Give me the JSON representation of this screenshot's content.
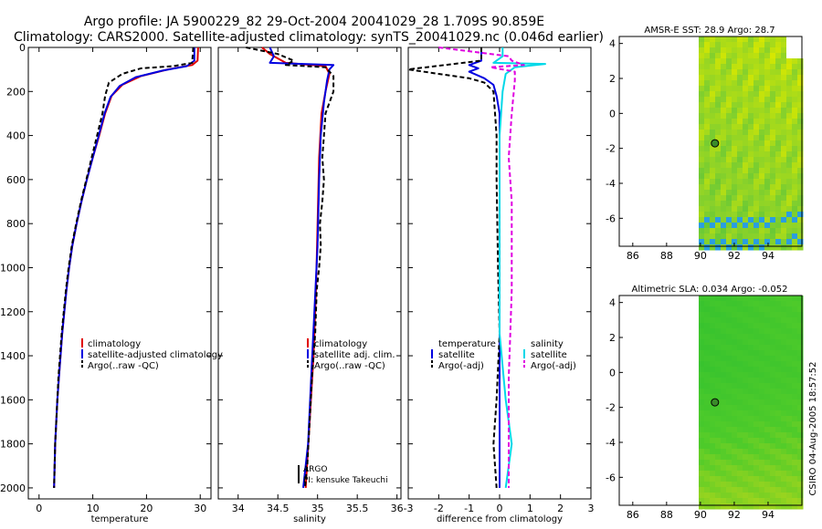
{
  "title_line1": "Argo profile: JA 5900229_82 29-Oct-2004 20041029_28 1.709S 90.859E",
  "title_line2": "Climatology: CARS2000. Satellite-adjusted climatology: synTS_20041029.nc (0.046d earlier)",
  "side_label": "CSIRO 04-Aug-2005 18:57:52",
  "colors": {
    "clim": "#e00000",
    "sat": "#0000e0",
    "argo": "#000000",
    "cyan": "#00d8e8",
    "magenta": "#e000e0"
  },
  "chart_data": [
    {
      "type": "line",
      "id": "temp",
      "xlabel": "temperature",
      "xlim": [
        -2,
        32
      ],
      "ylim": [
        0,
        2050
      ],
      "xticks": [
        0,
        10,
        20,
        30
      ],
      "yticks": [
        0,
        200,
        400,
        600,
        800,
        1000,
        1200,
        1400,
        1600,
        1800,
        2000
      ],
      "legend": [
        "climatology",
        "satellite-adjusted climatology",
        "Argo(..raw -QC)"
      ],
      "series": [
        {
          "name": "climatology",
          "color": "clim",
          "dash": false,
          "points": [
            [
              29.6,
              0
            ],
            [
              29.5,
              60
            ],
            [
              28.5,
              80
            ],
            [
              24,
              100
            ],
            [
              19,
              130
            ],
            [
              15.5,
              170
            ],
            [
              13.5,
              220
            ],
            [
              12.3,
              300
            ],
            [
              11.2,
              400
            ],
            [
              10,
              500
            ],
            [
              8.9,
              600
            ],
            [
              7.9,
              700
            ],
            [
              7,
              800
            ],
            [
              6.2,
              900
            ],
            [
              5.6,
              1000
            ],
            [
              5.1,
              1100
            ],
            [
              4.7,
              1200
            ],
            [
              4.3,
              1300
            ],
            [
              4,
              1400
            ],
            [
              3.7,
              1500
            ],
            [
              3.4,
              1600
            ],
            [
              3.2,
              1700
            ],
            [
              3,
              1800
            ],
            [
              2.9,
              1900
            ],
            [
              2.8,
              2000
            ]
          ]
        },
        {
          "name": "satellite-adjusted climatology",
          "color": "sat",
          "dash": false,
          "points": [
            [
              28.9,
              0
            ],
            [
              28.9,
              60
            ],
            [
              27.5,
              85
            ],
            [
              23,
              105
            ],
            [
              18,
              135
            ],
            [
              15,
              175
            ],
            [
              13.3,
              225
            ],
            [
              12.2,
              300
            ],
            [
              11.1,
              400
            ],
            [
              10,
              500
            ],
            [
              8.9,
              600
            ],
            [
              7.9,
              700
            ],
            [
              7,
              800
            ],
            [
              6.2,
              900
            ],
            [
              5.6,
              1000
            ],
            [
              5.1,
              1100
            ],
            [
              4.7,
              1200
            ],
            [
              4.3,
              1300
            ],
            [
              4,
              1400
            ],
            [
              3.7,
              1500
            ],
            [
              3.4,
              1600
            ],
            [
              3.2,
              1700
            ],
            [
              3,
              1800
            ],
            [
              2.9,
              1900
            ],
            [
              2.8,
              2000
            ]
          ]
        },
        {
          "name": "Argo(..raw -QC)",
          "color": "argo",
          "dash": true,
          "points": [
            [
              28.7,
              0
            ],
            [
              28.5,
              70
            ],
            [
              25,
              85
            ],
            [
              19,
              95
            ],
            [
              15.5,
              120
            ],
            [
              13,
              160
            ],
            [
              12.3,
              220
            ],
            [
              11.8,
              300
            ],
            [
              10.8,
              400
            ],
            [
              9.8,
              500
            ],
            [
              8.8,
              600
            ],
            [
              7.8,
              700
            ],
            [
              6.9,
              800
            ],
            [
              6.1,
              900
            ],
            [
              5.5,
              1000
            ],
            [
              5,
              1100
            ],
            [
              4.6,
              1200
            ],
            [
              4.2,
              1300
            ],
            [
              3.9,
              1400
            ],
            [
              3.6,
              1500
            ],
            [
              3.4,
              1600
            ],
            [
              3.2,
              1700
            ],
            [
              3,
              1800
            ],
            [
              2.9,
              1900
            ],
            [
              2.8,
              2000
            ]
          ]
        }
      ]
    },
    {
      "type": "line",
      "id": "sal",
      "xlabel": "salinity",
      "xlim": [
        33.75,
        36.05
      ],
      "ylim": [
        0,
        2050
      ],
      "xticks": [
        34,
        34.5,
        35,
        35.5,
        36
      ],
      "legend": [
        "climatology",
        "satellite adj. clim.",
        "Argo(..raw -QC)"
      ],
      "note_lines": [
        "ARGO",
        "PI: kensuke Takeuchi"
      ],
      "series": [
        {
          "name": "climatology",
          "color": "clim",
          "dash": false,
          "points": [
            [
              34.3,
              0
            ],
            [
              34.4,
              30
            ],
            [
              34.6,
              70
            ],
            [
              35.1,
              85
            ],
            [
              35.15,
              120
            ],
            [
              35.1,
              200
            ],
            [
              35.05,
              300
            ],
            [
              35.02,
              500
            ],
            [
              35,
              800
            ],
            [
              34.98,
              1100
            ],
            [
              34.95,
              1400
            ],
            [
              34.9,
              1700
            ],
            [
              34.85,
              2000
            ]
          ]
        },
        {
          "name": "satellite adj. clim.",
          "color": "sat",
          "dash": false,
          "points": [
            [
              34.4,
              0
            ],
            [
              34.45,
              40
            ],
            [
              34.4,
              70
            ],
            [
              35.2,
              80
            ],
            [
              35.15,
              100
            ],
            [
              35.12,
              150
            ],
            [
              35.08,
              250
            ],
            [
              35.04,
              400
            ],
            [
              35.02,
              600
            ],
            [
              35,
              900
            ],
            [
              34.96,
              1200
            ],
            [
              34.92,
              1500
            ],
            [
              34.88,
              1800
            ],
            [
              34.82,
              2000
            ]
          ]
        },
        {
          "name": "Argo(..raw -QC)",
          "color": "argo",
          "dash": true,
          "points": [
            [
              34.1,
              0
            ],
            [
              34.5,
              30
            ],
            [
              34.7,
              60
            ],
            [
              34.6,
              80
            ],
            [
              35.1,
              90
            ],
            [
              35.2,
              130
            ],
            [
              35.2,
              200
            ],
            [
              35.1,
              300
            ],
            [
              35.08,
              400
            ],
            [
              35.06,
              500
            ],
            [
              35.08,
              600
            ],
            [
              35.06,
              700
            ],
            [
              35.03,
              800
            ],
            [
              35.04,
              900
            ],
            [
              35.02,
              1000
            ],
            [
              34.99,
              1100
            ],
            [
              34.97,
              1300
            ],
            [
              34.93,
              1500
            ],
            [
              34.9,
              1700
            ],
            [
              34.87,
              1900
            ],
            [
              34.84,
              2000
            ]
          ]
        }
      ]
    },
    {
      "type": "line",
      "id": "diff",
      "xlabel": "difference from climatology",
      "xlim": [
        -3,
        3
      ],
      "ylim": [
        0,
        2050
      ],
      "xticks": [
        -3,
        -2,
        -1,
        0,
        1,
        2,
        3
      ],
      "legend_left": [
        "temperature",
        "satellite",
        "Argo(-adj)"
      ],
      "legend_right": [
        "salinity",
        "satellite",
        "Argo(-adj)"
      ],
      "series": [
        {
          "name": "temperature satellite",
          "color": "sat",
          "dash": false,
          "points": [
            [
              -0.6,
              0
            ],
            [
              -0.6,
              60
            ],
            [
              -1,
              80
            ],
            [
              -0.7,
              95
            ],
            [
              -1,
              110
            ],
            [
              -0.5,
              140
            ],
            [
              -0.2,
              170
            ],
            [
              -0.1,
              220
            ],
            [
              0,
              300
            ],
            [
              0,
              600
            ],
            [
              0,
              1000
            ],
            [
              0,
              1400
            ],
            [
              0,
              2000
            ]
          ]
        },
        {
          "name": "temperature Argo(-adj)",
          "color": "argo",
          "dash": true,
          "points": [
            [
              -0.6,
              0
            ],
            [
              -0.6,
              60
            ],
            [
              -1.5,
              75
            ],
            [
              -3,
              100
            ],
            [
              -2,
              120
            ],
            [
              -1,
              140
            ],
            [
              -0.5,
              160
            ],
            [
              -0.2,
              200
            ],
            [
              -0.15,
              300
            ],
            [
              -0.1,
              400
            ],
            [
              -0.1,
              600
            ],
            [
              -0.05,
              1000
            ],
            [
              0,
              1300
            ],
            [
              -0.1,
              1600
            ],
            [
              -0.2,
              1800
            ],
            [
              -0.1,
              2000
            ]
          ]
        },
        {
          "name": "salinity satellite",
          "color": "cyan",
          "dash": false,
          "points": [
            [
              0.1,
              0
            ],
            [
              0.1,
              40
            ],
            [
              -0.2,
              70
            ],
            [
              1.5,
              75
            ],
            [
              0.5,
              90
            ],
            [
              0.2,
              120
            ],
            [
              0.1,
              200
            ],
            [
              0,
              400
            ],
            [
              0,
              700
            ],
            [
              0,
              1000
            ],
            [
              0,
              1300
            ],
            [
              0.2,
              1600
            ],
            [
              0.4,
              1800
            ],
            [
              0.2,
              2000
            ]
          ]
        },
        {
          "name": "salinity Argo(-adj)",
          "color": "magenta",
          "dash": true,
          "points": [
            [
              -2,
              0
            ],
            [
              0.3,
              40
            ],
            [
              0.4,
              60
            ],
            [
              0.8,
              80
            ],
            [
              -0.3,
              90
            ],
            [
              0.5,
              110
            ],
            [
              0.5,
              150
            ],
            [
              0.4,
              300
            ],
            [
              0.3,
              500
            ],
            [
              0.4,
              700
            ],
            [
              0.4,
              900
            ],
            [
              0.4,
              1100
            ],
            [
              0.35,
              1300
            ],
            [
              0.3,
              1500
            ],
            [
              0.3,
              1700
            ],
            [
              0.3,
              1900
            ],
            [
              0.3,
              2000
            ]
          ]
        }
      ]
    },
    {
      "type": "heatmap",
      "id": "sst",
      "title": "AMSR-E SST: 28.9 Argo: 28.7",
      "xlim": [
        85.2,
        96
      ],
      "ylim": [
        -7.6,
        4.4
      ],
      "xticks": [
        86,
        88,
        90,
        92,
        94
      ],
      "yticks": [
        4,
        2,
        0,
        -2,
        -4,
        -6
      ],
      "data_west_edge": 89.9,
      "marker": [
        90.859,
        -1.709
      ],
      "gradient": [
        "#d8e800",
        "#8ad22a",
        "#4cc040"
      ]
    },
    {
      "type": "heatmap",
      "id": "sla",
      "title": "Altimetric SLA: 0.034 Argo: -0.052",
      "xlim": [
        85.2,
        96
      ],
      "ylim": [
        -7.6,
        4.4
      ],
      "xticks": [
        86,
        88,
        90,
        92,
        94
      ],
      "yticks": [
        4,
        2,
        0,
        -2,
        -4,
        -6
      ],
      "data_west_edge": 89.9,
      "marker": [
        90.859,
        -1.709
      ],
      "gradient": [
        "#2fc030",
        "#4fcb2a",
        "#c8da18"
      ]
    }
  ]
}
